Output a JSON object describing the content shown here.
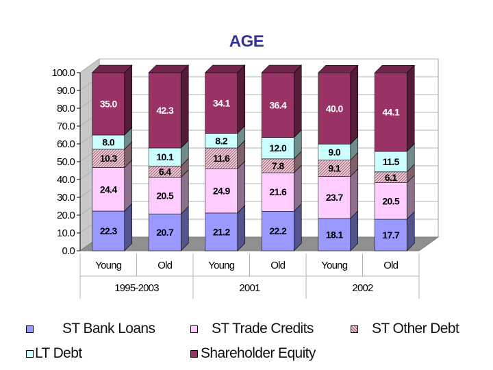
{
  "chart_data": {
    "type": "bar",
    "stacked": true,
    "title": "AGE",
    "groups": [
      {
        "label": "1995-2003",
        "categories": [
          "Young",
          "Old"
        ]
      },
      {
        "label": "2001",
        "categories": [
          "Young",
          "Old"
        ]
      },
      {
        "label": "2002",
        "categories": [
          "Young",
          "Old"
        ]
      }
    ],
    "ylim": [
      0,
      100
    ],
    "yticks": [
      "0.0",
      "10.0",
      "20.0",
      "30.0",
      "40.0",
      "50.0",
      "60.0",
      "70.0",
      "80.0",
      "90.0",
      "100.0"
    ],
    "series": [
      {
        "name": "ST Bank Loans",
        "color": "#9999FF",
        "values": [
          22.3,
          20.7,
          21.2,
          22.2,
          18.1,
          17.7
        ]
      },
      {
        "name": "ST Trade Credits",
        "color": "#FFCCFF",
        "values": [
          24.4,
          20.5,
          24.9,
          21.6,
          23.7,
          20.5
        ]
      },
      {
        "name": "ST Other Debt",
        "color": "#E6B3C4",
        "hatched": true,
        "values": [
          10.3,
          6.4,
          11.6,
          7.8,
          9.1,
          6.1
        ]
      },
      {
        "name": "LT Debt",
        "color": "#CCFFFF",
        "values": [
          8.0,
          10.1,
          8.2,
          12.0,
          9.0,
          11.5
        ]
      },
      {
        "name": "Shareholder Equity",
        "color": "#993366",
        "values": [
          35.0,
          42.3,
          34.1,
          36.4,
          40.0,
          44.1
        ]
      }
    ],
    "grid": true,
    "legend": "bottom"
  }
}
